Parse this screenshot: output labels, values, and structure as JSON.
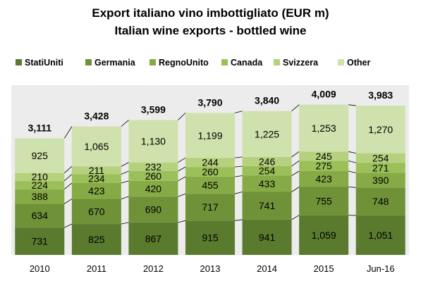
{
  "chart_data": {
    "type": "bar",
    "stacked": true,
    "title": "Export italiano vino imbottigliato (EUR m)",
    "subtitle": "Italian wine exports - bottled wine",
    "categories": [
      "2010",
      "2011",
      "2012",
      "2013",
      "2014",
      "2015",
      "Jun-16"
    ],
    "series": [
      {
        "name": "StatiUniti",
        "color": "#5a7a2e",
        "values": [
          731,
          825,
          867,
          915,
          941,
          1059,
          1051
        ]
      },
      {
        "name": "Germania",
        "color": "#6f9138",
        "values": [
          634,
          670,
          690,
          717,
          741,
          755,
          748
        ]
      },
      {
        "name": "RegnoUnito",
        "color": "#86aa45",
        "values": [
          388,
          423,
          420,
          455,
          433,
          423,
          390
        ]
      },
      {
        "name": "Canada",
        "color": "#9bc05a",
        "values": [
          224,
          234,
          260,
          260,
          254,
          275,
          271
        ]
      },
      {
        "name": "Svizzera",
        "color": "#b5d17e",
        "values": [
          210,
          211,
          232,
          244,
          246,
          245,
          254
        ]
      },
      {
        "name": "Other",
        "color": "#cfe1ac",
        "values": [
          925,
          1065,
          1130,
          1199,
          1225,
          1253,
          1270
        ]
      }
    ],
    "totals": [
      3111,
      3428,
      3599,
      3790,
      3840,
      4009,
      3983
    ],
    "legend_position": "top",
    "grid": false
  }
}
